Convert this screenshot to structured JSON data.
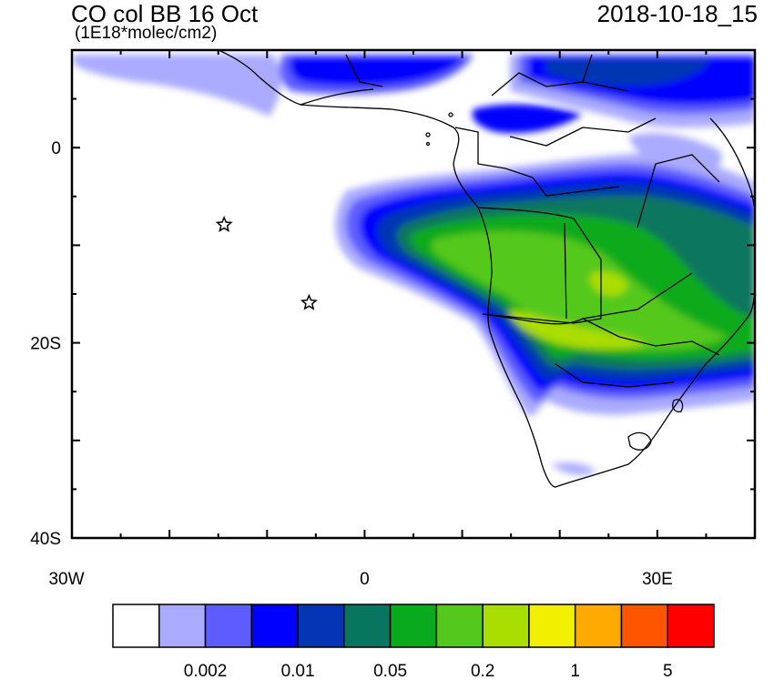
{
  "header": {
    "title": "CO col BB 16 Oct",
    "units": "(1E18*molec/cm2)",
    "valid_time": "2018-10-18_15"
  },
  "map": {
    "lon_range": [
      -30,
      40
    ],
    "lat_range": [
      -40,
      10
    ],
    "y_ticks": [
      {
        "lat": 0,
        "label": "0"
      },
      {
        "lat": -20,
        "label": "20S"
      },
      {
        "lat": -40,
        "label": "40S"
      }
    ],
    "x_ticks": [
      {
        "lon": -30,
        "label": "30W"
      },
      {
        "lon": 0,
        "label": "0"
      },
      {
        "lon": 30,
        "label": "30E"
      }
    ],
    "markers": [
      {
        "name": "station-star",
        "lon": -14.4,
        "lat": -7.9
      },
      {
        "name": "station-star",
        "lon": -5.7,
        "lat": -15.9
      }
    ]
  },
  "colorbar": {
    "colors": [
      "#ffffff",
      "#aaaaff",
      "#5d5dff",
      "#0000ff",
      "#0535b4",
      "#08765f",
      "#0aaa1e",
      "#55c81e",
      "#aadd00",
      "#f0f000",
      "#ffaa00",
      "#ff5500",
      "#ff0000"
    ],
    "labels": [
      "0.002",
      "0.01",
      "0.05",
      "0.2",
      "1",
      "5"
    ]
  }
}
